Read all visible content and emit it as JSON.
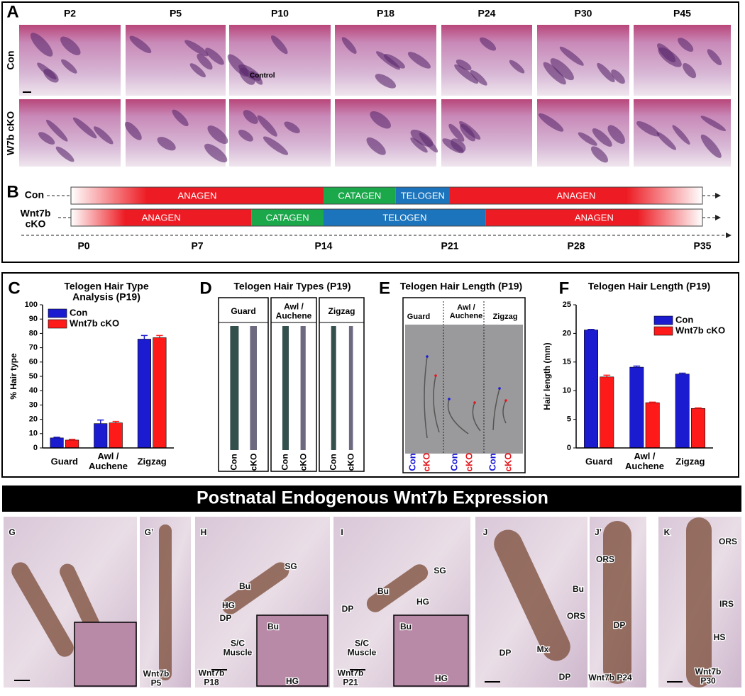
{
  "panel_a": {
    "label": "A",
    "ages": [
      "P2",
      "P5",
      "P10",
      "P18",
      "P24",
      "P30",
      "P45"
    ],
    "rows": [
      "Con",
      "W7b cKO"
    ],
    "annotation": "Control"
  },
  "panel_b": {
    "label": "B",
    "xlim": [
      0,
      35
    ],
    "rows": [
      {
        "name": "Con",
        "segments": [
          {
            "label": "ANAGEN",
            "start": 0,
            "end": 14,
            "color": "#ed1c24"
          },
          {
            "label": "CATAGEN",
            "start": 14,
            "end": 18,
            "color": "#1aa84a"
          },
          {
            "label": "TELOGEN",
            "start": 18,
            "end": 21,
            "color": "#1c74bc"
          },
          {
            "label": "ANAGEN",
            "start": 21,
            "end": 35,
            "color": "#ed1c24"
          }
        ]
      },
      {
        "name": "Wnt7b\ncKO",
        "segments": [
          {
            "label": "ANAGEN",
            "start": 0,
            "end": 10,
            "color": "#ed1c24"
          },
          {
            "label": "CATAGEN",
            "start": 10,
            "end": 14,
            "color": "#1aa84a"
          },
          {
            "label": "TELOGEN",
            "start": 14,
            "end": 23,
            "color": "#1c74bc"
          },
          {
            "label": "ANAGEN",
            "start": 23,
            "end": 35,
            "color": "#ed1c24"
          }
        ]
      }
    ],
    "ticks": [
      {
        "value": 0,
        "label": "P0"
      },
      {
        "value": 7,
        "label": "P7"
      },
      {
        "value": 14,
        "label": "P14"
      },
      {
        "value": 21,
        "label": "P21"
      },
      {
        "value": 28,
        "label": "P28"
      },
      {
        "value": 35,
        "label": "P35"
      }
    ]
  },
  "chart_data": [
    {
      "type": "bar",
      "panel_label": "C",
      "title": "Telogen Hair Type\nAnalysis (P19)",
      "ylabel": "% Hair type",
      "categories": [
        "Guard",
        "Awl /\nAuchene",
        "Zigzag"
      ],
      "series": [
        {
          "name": "Con",
          "color": "#1b1bd0",
          "values": [
            7,
            17,
            76
          ],
          "errors": [
            0.5,
            2.5,
            2.5
          ]
        },
        {
          "name": "Wnt7b cKO",
          "color": "#ff1a1a",
          "values": [
            5.5,
            17.5,
            77
          ],
          "errors": [
            0.5,
            1,
            1.5
          ]
        }
      ],
      "ylim": [
        0,
        100
      ],
      "yticks": [
        0,
        10,
        20,
        30,
        40,
        50,
        60,
        70,
        80,
        90,
        100
      ],
      "legend": "upper-left"
    },
    {
      "type": "bar",
      "panel_label": "F",
      "title": "Telogen Hair Length (P19)",
      "ylabel": "Hair length (mm)",
      "categories": [
        "Guard",
        "Awl /\nAuchene",
        "Zigzag"
      ],
      "series": [
        {
          "name": "Con",
          "color": "#1b1bd0",
          "values": [
            20.6,
            14.1,
            12.9
          ],
          "errors": [
            0.1,
            0.2,
            0.15
          ]
        },
        {
          "name": "Wnt7b cKO",
          "color": "#ff1a1a",
          "values": [
            12.4,
            7.9,
            6.9
          ],
          "errors": [
            0.3,
            0.1,
            0.1
          ]
        }
      ],
      "ylim": [
        0,
        25
      ],
      "yticks": [
        0,
        5,
        10,
        15,
        20,
        25
      ],
      "legend": "upper-right"
    }
  ],
  "panel_d": {
    "label": "D",
    "title": "Telogen Hair Types (P19)",
    "columns": [
      "Guard",
      "Awl /\nAuchene",
      "Zigzag"
    ],
    "samples": [
      "Con",
      "cKO"
    ]
  },
  "panel_e": {
    "label": "E",
    "title": "Telogen Hair Length (P19)",
    "columns": [
      "Guard",
      "Awl /\nAuchene",
      "Zigzag"
    ],
    "samples": [
      {
        "name": "Con",
        "color": "#1a1ad6"
      },
      {
        "name": "cKO",
        "color": "#e3161c"
      }
    ]
  },
  "banner": "Postnatal Endogenous Wnt7b Expression",
  "panel_g": {
    "label": "G"
  },
  "panel_g2": {
    "label": "G’",
    "annotations": [
      "Wnt7b\nP5"
    ]
  },
  "panel_h": {
    "label": "H",
    "annotations": [
      "SG",
      "Bu",
      "HG",
      "DP",
      "S/C\nMuscle",
      "Bu",
      "HG",
      "Wnt7b\nP18"
    ]
  },
  "panel_i": {
    "label": "I",
    "annotations": [
      "SG",
      "Bu",
      "DP",
      "HG",
      "S/C\nMuscle",
      "Bu",
      "HG",
      "Wnt7b\nP21"
    ]
  },
  "panel_j": {
    "label": "J",
    "annotations": [
      "Bu",
      "ORS",
      "DP",
      "Mx",
      "DP"
    ]
  },
  "panel_j2": {
    "label": "J’",
    "annotations": [
      "ORS",
      "DP",
      "Wnt7b P24"
    ]
  },
  "panel_k": {
    "label": "K",
    "annotations": [
      "ORS",
      "IRS",
      "HS",
      "Wnt7b\nP30"
    ]
  }
}
